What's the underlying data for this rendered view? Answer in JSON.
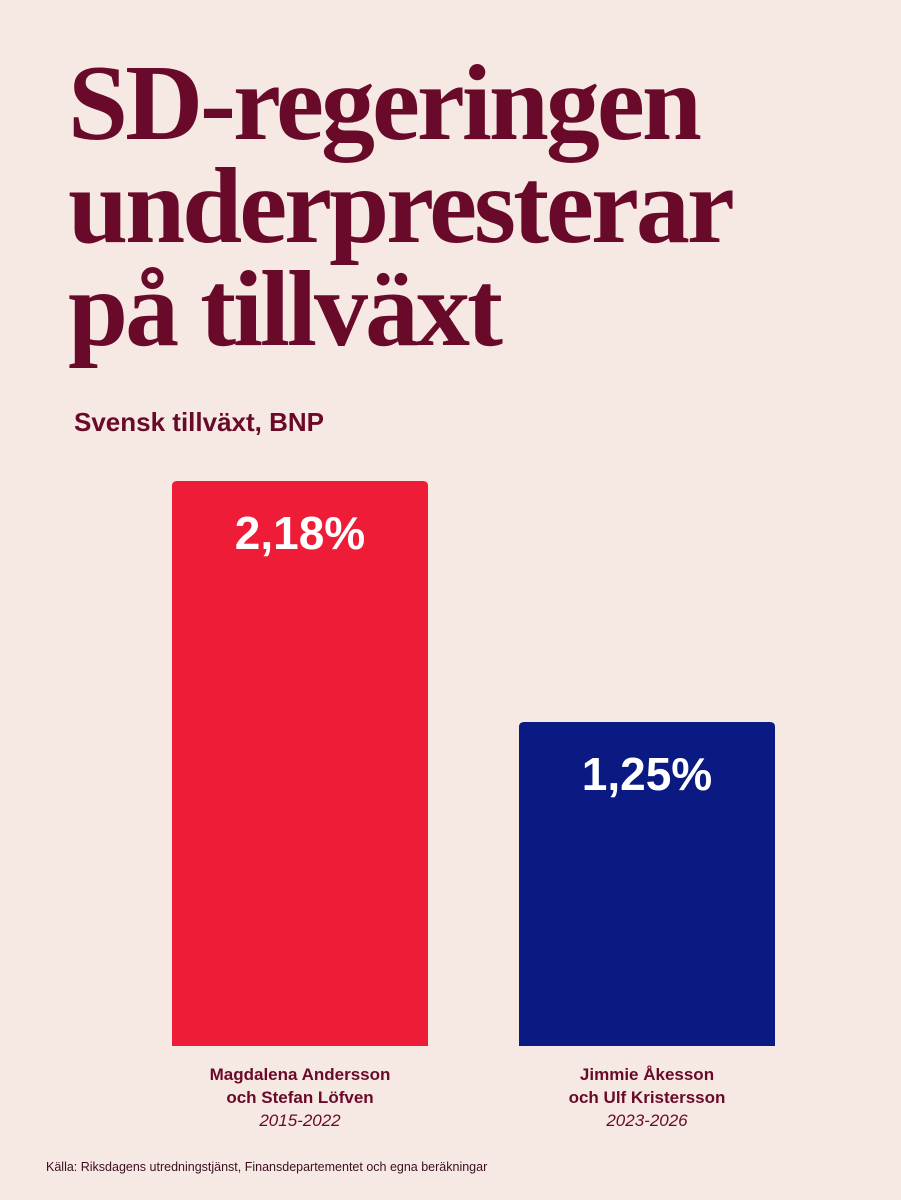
{
  "chart_data": {
    "type": "bar",
    "title": "SD-regeringen underpresterar på tillväxt",
    "title_lines": [
      "SD-regeringen",
      "underpresterar",
      "på tillväxt"
    ],
    "subtitle": "Svensk tillväxt, BNP",
    "xlabel": "",
    "ylabel": "",
    "ylim": [
      0,
      2.18
    ],
    "grid": false,
    "categories": [
      {
        "name_lines": [
          "Magdalena Andersson",
          "och Stefan Löfven"
        ],
        "period": "2015-2022"
      },
      {
        "name_lines": [
          "Jimmie Åkesson",
          "och Ulf Kristersson"
        ],
        "period": "2023-2026"
      }
    ],
    "values": [
      2.18,
      1.25
    ],
    "value_labels": [
      "2,18%",
      "1,25%"
    ],
    "colors": [
      "#ee1c36",
      "#0b1a82"
    ]
  },
  "footnote": "Källa: Riksdagens utredningstjänst, Finansdepartementet och egna beräkningar",
  "colors": {
    "background": "#f6e8e2",
    "text": "#6a0a2a"
  }
}
